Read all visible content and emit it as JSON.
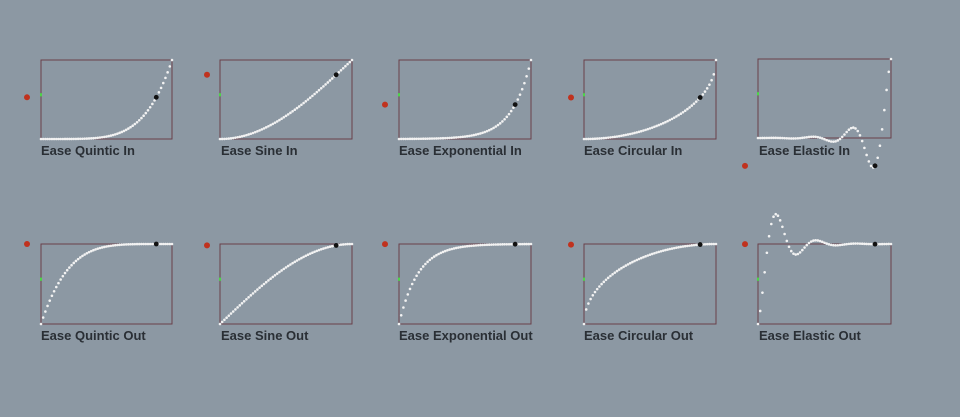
{
  "app": {
    "background": "#8c98a3",
    "frame_color": "#6a3f4a",
    "dot_color": "#f2f2f2",
    "marker_color": "#111111",
    "indicator_color": "#c0321e",
    "axis_color": "#4cd648"
  },
  "panels": [
    {
      "name": "quintic-in",
      "label": "Ease Quintic In",
      "easing": "quinticIn",
      "progress": 0.88
    },
    {
      "name": "sine-in",
      "label": "Ease Sine In",
      "easing": "sineIn",
      "progress": 0.88
    },
    {
      "name": "exponential-in",
      "label": "Ease Exponential In",
      "easing": "expoIn",
      "progress": 0.88
    },
    {
      "name": "circular-in",
      "label": "Ease Circular In",
      "easing": "circIn",
      "progress": 0.88
    },
    {
      "name": "elastic-in",
      "label": "Ease Elastic In",
      "easing": "elasticIn",
      "progress": 0.88
    },
    {
      "name": "quintic-out",
      "label": "Ease Quintic Out",
      "easing": "quinticOut",
      "progress": 0.88
    },
    {
      "name": "sine-out",
      "label": "Ease Sine Out",
      "easing": "sineOut",
      "progress": 0.88
    },
    {
      "name": "exponential-out",
      "label": "Ease Exponential Out",
      "easing": "expoOut",
      "progress": 0.88
    },
    {
      "name": "circular-out",
      "label": "Ease Circular Out",
      "easing": "circOut",
      "progress": 0.88
    },
    {
      "name": "elastic-out",
      "label": "Ease Elastic Out",
      "easing": "elasticOut",
      "progress": 0.88
    }
  ]
}
